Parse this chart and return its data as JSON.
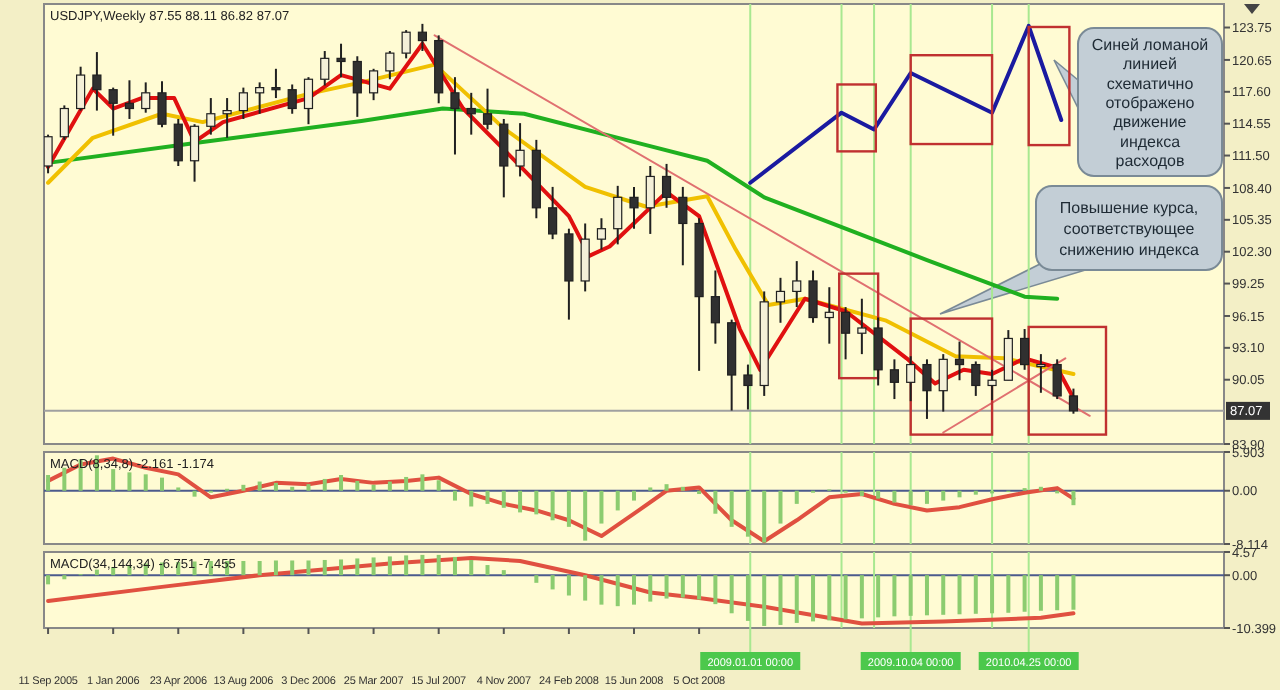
{
  "chart_data": [
    {
      "type": "candlestick",
      "title": "USDJPY,Weekly 87.55 88.11 86.82 87.07",
      "tick_labels": "y",
      "xlim": [
        "2005-09-04",
        "2011-03-27"
      ],
      "ylim": [
        83.9,
        126
      ],
      "yticks": [
        123.75,
        {
          "value": 120.65,
          "label": "120.65"
        },
        {
          "value": 117.6,
          "label": "117.60"
        },
        114.55,
        {
          "value": 111.5,
          "label": "111.50"
        },
        {
          "value": 108.4,
          "label": "108.40"
        },
        105.35,
        {
          "value": 102.3,
          "label": "102.30"
        },
        99.25,
        96.15,
        {
          "value": 93.1,
          "label": "93.10"
        },
        90.05,
        {
          "value": 83.9,
          "label": "83.90"
        }
      ],
      "x": [
        "2005-09-11",
        "2005-10-09",
        "2005-11-06",
        "2005-12-04",
        "2006-01-01",
        "2006-01-29",
        "2006-02-26",
        "2006-03-26",
        "2006-04-23",
        "2006-05-21",
        "2006-06-18",
        "2006-07-16",
        "2006-08-13",
        "2006-09-10",
        "2006-10-08",
        "2006-11-05",
        "2006-12-03",
        "2006-12-31",
        "2007-01-28",
        "2007-02-25",
        "2007-03-25",
        "2007-04-22",
        "2007-05-20",
        "2007-06-17",
        "2007-07-15",
        "2007-08-12",
        "2007-09-09",
        "2007-10-07",
        "2007-11-04",
        "2007-12-02",
        "2007-12-30",
        "2008-01-27",
        "2008-02-24",
        "2008-03-23",
        "2008-04-20",
        "2008-05-18",
        "2008-06-15",
        "2008-07-13",
        "2008-08-10",
        "2008-09-07",
        "2008-10-05",
        "2008-11-02",
        "2008-11-30",
        "2008-12-28",
        "2009-01-25",
        "2009-02-22",
        "2009-03-22",
        "2009-04-19",
        "2009-05-17",
        "2009-06-14",
        "2009-07-12",
        "2009-08-09",
        "2009-09-06",
        "2009-10-04",
        "2009-11-01",
        "2009-11-29",
        "2009-12-27",
        "2010-01-24",
        "2010-02-21",
        "2010-03-21",
        "2010-04-18",
        "2010-05-16",
        "2010-06-13",
        "2010-07-11"
      ],
      "ohlc": [
        [
          110.5,
          113.5,
          109.8,
          113.3
        ],
        [
          113.3,
          116.3,
          113.0,
          116.0
        ],
        [
          116.0,
          120.0,
          115.8,
          119.2
        ],
        [
          119.2,
          121.4,
          115.8,
          117.8
        ],
        [
          117.8,
          118.0,
          113.4,
          116.5
        ],
        [
          116.5,
          118.7,
          115.0,
          116.0
        ],
        [
          116.0,
          118.5,
          115.6,
          117.5
        ],
        [
          117.5,
          118.6,
          114.2,
          114.5
        ],
        [
          114.5,
          115.0,
          110.5,
          111.0
        ],
        [
          111.0,
          114.5,
          109.0,
          114.3
        ],
        [
          114.3,
          117.0,
          113.5,
          115.5
        ],
        [
          115.5,
          117.0,
          113.2,
          115.8
        ],
        [
          115.8,
          118.0,
          115.0,
          117.5
        ],
        [
          117.5,
          118.5,
          115.5,
          118.0
        ],
        [
          118.0,
          119.8,
          117.0,
          117.8
        ],
        [
          117.8,
          118.3,
          115.5,
          116.0
        ],
        [
          116.0,
          119.0,
          114.5,
          118.8
        ],
        [
          118.8,
          121.5,
          118.2,
          120.8
        ],
        [
          120.8,
          122.2,
          119.0,
          120.5
        ],
        [
          120.5,
          121.0,
          115.2,
          117.5
        ],
        [
          117.5,
          119.8,
          116.8,
          119.6
        ],
        [
          119.6,
          121.5,
          118.8,
          121.3
        ],
        [
          121.3,
          123.5,
          120.8,
          123.3
        ],
        [
          123.3,
          124.1,
          121.5,
          122.5
        ],
        [
          122.5,
          123.0,
          116.5,
          117.5
        ],
        [
          117.5,
          119.0,
          111.6,
          116.0
        ],
        [
          116.0,
          117.5,
          113.5,
          115.5
        ],
        [
          115.5,
          117.9,
          114.0,
          114.5
        ],
        [
          114.5,
          115.0,
          107.5,
          110.5
        ],
        [
          110.5,
          114.6,
          109.5,
          112.0
        ],
        [
          112.0,
          113.0,
          105.5,
          106.5
        ],
        [
          106.5,
          108.5,
          103.5,
          104.0
        ],
        [
          104.0,
          104.5,
          95.8,
          99.5
        ],
        [
          99.5,
          105.0,
          98.5,
          103.5
        ],
        [
          103.5,
          105.5,
          102.5,
          104.5
        ],
        [
          104.5,
          108.6,
          103.0,
          107.5
        ],
        [
          107.5,
          108.5,
          104.5,
          106.5
        ],
        [
          106.5,
          110.5,
          104.0,
          109.5
        ],
        [
          109.5,
          110.7,
          106.5,
          107.5
        ],
        [
          107.5,
          108.5,
          101.0,
          105.0
        ],
        [
          105.0,
          105.5,
          90.9,
          98.0
        ],
        [
          98.0,
          100.5,
          93.5,
          95.5
        ],
        [
          95.5,
          95.8,
          87.1,
          90.5
        ],
        [
          90.5,
          91.5,
          87.2,
          89.5
        ],
        [
          89.5,
          98.5,
          88.5,
          97.5
        ],
        [
          97.5,
          99.8,
          95.5,
          98.5
        ],
        [
          98.5,
          101.4,
          97.0,
          99.5
        ],
        [
          99.5,
          100.5,
          95.5,
          96.0
        ],
        [
          96.0,
          98.9,
          93.5,
          96.5
        ],
        [
          96.5,
          97.0,
          92.0,
          94.5
        ],
        [
          94.5,
          97.8,
          92.5,
          95.0
        ],
        [
          95.0,
          96.0,
          89.5,
          91.0
        ],
        [
          91.0,
          92.0,
          88.2,
          89.8
        ],
        [
          89.8,
          92.3,
          88.0,
          91.5
        ],
        [
          91.5,
          92.0,
          86.3,
          89.0
        ],
        [
          89.0,
          92.5,
          87.0,
          92.0
        ],
        [
          92.0,
          93.7,
          90.0,
          91.5
        ],
        [
          91.5,
          91.8,
          88.5,
          89.5
        ],
        [
          89.5,
          91.0,
          88.1,
          90.0
        ],
        [
          90.0,
          94.8,
          90.0,
          94.0
        ],
        [
          94.0,
          94.9,
          91.0,
          91.5
        ],
        [
          91.5,
          92.5,
          88.8,
          91.5
        ],
        [
          91.5,
          92.0,
          88.2,
          88.5
        ],
        [
          88.5,
          89.2,
          86.8,
          87.07
        ]
      ],
      "series": [
        {
          "type": "line",
          "color": "#20b020",
          "x": [
            "2005-09-11",
            "2006-06-04",
            "2007-03-04",
            "2007-07-22",
            "2007-12-09",
            "2008-07-06",
            "2008-10-19",
            "2009-01-25",
            "2009-06-14",
            "2009-11-01",
            "2010-04-18",
            "2010-06-13"
          ],
          "values": [
            110.8,
            112.8,
            114.8,
            116.0,
            115.5,
            112.5,
            111.0,
            107.5,
            104.5,
            101.5,
            98.0,
            97.8
          ]
        },
        {
          "type": "line",
          "color": "#f0c000",
          "x": [
            "2005-09-11",
            "2005-11-27",
            "2006-03-26",
            "2006-06-04",
            "2006-12-03",
            "2007-03-04",
            "2007-07-08",
            "2007-11-04",
            "2008-03-23",
            "2008-07-06",
            "2008-10-19",
            "2008-12-07",
            "2009-02-01",
            "2009-04-05",
            "2009-08-23",
            "2009-12-20",
            "2010-03-14",
            "2010-07-11"
          ],
          "values": [
            108.9,
            113.2,
            115.5,
            114.7,
            117.4,
            118.5,
            120.2,
            114.1,
            108.5,
            106.6,
            107.6,
            102.5,
            97.2,
            97.8,
            95.7,
            92.3,
            92.1,
            90.6
          ]
        },
        {
          "type": "line",
          "color": "#e01010",
          "x": [
            "2005-09-11",
            "2005-11-27",
            "2006-01-01",
            "2006-02-19",
            "2006-04-16",
            "2006-05-21",
            "2006-07-09",
            "2006-12-03",
            "2007-01-28",
            "2007-04-22",
            "2007-06-17",
            "2007-08-26",
            "2007-11-25",
            "2008-02-24",
            "2008-03-30",
            "2008-05-04",
            "2008-08-10",
            "2008-10-05",
            "2008-12-14",
            "2009-01-18",
            "2009-04-05",
            "2009-06-14",
            "2009-09-27",
            "2009-11-15",
            "2010-01-03",
            "2010-02-21",
            "2010-04-18",
            "2010-06-13",
            "2010-07-11"
          ],
          "values": [
            110.4,
            117.9,
            116.0,
            117.0,
            117.0,
            112.8,
            114.7,
            117.0,
            119.2,
            117.9,
            122.2,
            116.0,
            110.9,
            105.7,
            101.9,
            102.8,
            108.0,
            105.7,
            94.9,
            91.0,
            97.8,
            96.6,
            92.1,
            89.7,
            91.0,
            90.6,
            92.1,
            91.2,
            88.3
          ]
        },
        {
          "type": "line",
          "color": "#e07070",
          "x": [
            "2007-07-08",
            "2010-08-08"
          ],
          "values": [
            123.0,
            86.6
          ]
        },
        {
          "type": "line",
          "color": "#e07070",
          "x": [
            "2009-11-29",
            "2010-06-27"
          ],
          "values": [
            85.0,
            92.1
          ]
        },
        {
          "type": "line",
          "color": "#1a1aa0",
          "x": [
            "2009-01-01",
            "2009-06-07",
            "2009-08-02",
            "2009-10-04",
            "2010-02-21",
            "2010-04-25",
            "2010-06-20"
          ],
          "values": [
            108.9,
            115.6,
            114.0,
            119.4,
            115.6,
            123.9,
            114.9
          ]
        }
      ],
      "ref_lines": [
        {
          "axis": "x",
          "value": "2009-01-01",
          "color": "#a8e890"
        },
        {
          "axis": "x",
          "value": "2009-06-07",
          "color": "#a8e890"
        },
        {
          "axis": "x",
          "value": "2009-08-02",
          "color": "#a8e890"
        },
        {
          "axis": "x",
          "value": "2009-10-04",
          "color": "#a8e890"
        },
        {
          "axis": "x",
          "value": "2010-02-21",
          "color": "#a8e890"
        },
        {
          "axis": "x",
          "value": "2010-04-25",
          "color": "#a8e890"
        },
        {
          "axis": "y",
          "value": 87.07,
          "label": "87.07",
          "color": "#a0a0a0"
        }
      ],
      "annotations": [
        "Синей ломаной линией схематично отображено движение индекса расходов",
        "Повышение курса, соответствующее снижению индекса"
      ]
    },
    {
      "type": "bar",
      "title": "MACD(8,34,8) -2.161 -1.174",
      "tick_labels": "y",
      "xlim": [
        "2005-09-04",
        "2011-03-27"
      ],
      "ylim": [
        -8.114,
        5.903
      ],
      "yticks": [
        {
          "value": 5.903,
          "label": "5.903"
        },
        {
          "value": 0,
          "label": "0.00"
        },
        {
          "value": -8.114,
          "label": "-8.114"
        }
      ],
      "x": [
        "2005-09-11",
        "2005-10-09",
        "2005-11-06",
        "2005-12-04",
        "2006-01-01",
        "2006-01-29",
        "2006-02-26",
        "2006-03-26",
        "2006-04-23",
        "2006-05-21",
        "2006-06-18",
        "2006-07-16",
        "2006-08-13",
        "2006-09-10",
        "2006-10-08",
        "2006-11-05",
        "2006-12-03",
        "2006-12-31",
        "2007-01-28",
        "2007-02-25",
        "2007-03-25",
        "2007-04-22",
        "2007-05-20",
        "2007-06-17",
        "2007-07-15",
        "2007-08-12",
        "2007-09-09",
        "2007-10-07",
        "2007-11-04",
        "2007-12-02",
        "2007-12-30",
        "2008-01-27",
        "2008-02-24",
        "2008-03-23",
        "2008-04-20",
        "2008-05-18",
        "2008-06-15",
        "2008-07-13",
        "2008-08-10",
        "2008-09-07",
        "2008-10-05",
        "2008-11-02",
        "2008-11-30",
        "2008-12-28",
        "2009-01-25",
        "2009-02-22",
        "2009-03-22",
        "2009-04-19",
        "2009-05-17",
        "2009-06-14",
        "2009-07-12",
        "2009-08-09",
        "2009-09-06",
        "2009-10-04",
        "2009-11-01",
        "2009-11-29",
        "2009-12-27",
        "2010-01-24",
        "2010-02-21",
        "2010-03-21",
        "2010-04-18",
        "2010-05-16",
        "2010-06-13",
        "2010-07-11"
      ],
      "series": [
        {
          "type": "bar",
          "color": "#8ccc70",
          "values": [
            2.4,
            3.5,
            4.8,
            5.4,
            3.3,
            2.8,
            2.5,
            2.0,
            0.5,
            -0.9,
            -0.3,
            0.3,
            0.9,
            1.4,
            1.2,
            0.6,
            1.0,
            1.8,
            2.4,
            1.5,
            0.9,
            1.4,
            2.1,
            2.5,
            1.6,
            -1.5,
            -2.4,
            -2.0,
            -2.6,
            -3.3,
            -3.6,
            -4.5,
            -5.5,
            -7.6,
            -5.0,
            -3.0,
            -1.5,
            0.5,
            1.0,
            0.6,
            -0.5,
            -3.5,
            -5.5,
            -7.0,
            -7.9,
            -5.0,
            -2.0,
            -0.3,
            0.2,
            -0.3,
            -0.8,
            -1.2,
            -1.8,
            -2.2,
            -2.0,
            -1.5,
            -1.0,
            -0.6,
            -0.4,
            -0.2,
            0.4,
            0.6,
            -0.4,
            -2.2
          ]
        },
        {
          "type": "line",
          "color": "#e05040",
          "x": [
            "2005-09-11",
            "2005-11-06",
            "2006-01-01",
            "2006-02-26",
            "2006-04-23",
            "2006-06-18",
            "2006-08-13",
            "2006-10-08",
            "2006-12-03",
            "2007-01-28",
            "2007-03-25",
            "2007-05-20",
            "2007-07-15",
            "2007-09-09",
            "2007-11-04",
            "2007-12-30",
            "2008-02-24",
            "2008-04-20",
            "2008-06-15",
            "2008-08-10",
            "2008-10-05",
            "2008-11-30",
            "2009-01-25",
            "2009-03-22",
            "2009-05-17",
            "2009-07-12",
            "2009-09-06",
            "2009-11-01",
            "2009-12-27",
            "2010-02-21",
            "2010-04-18",
            "2010-06-13",
            "2010-07-11"
          ],
          "values": [
            1.5,
            4.0,
            4.9,
            3.5,
            2.5,
            -1.0,
            0.0,
            1.2,
            1.0,
            1.8,
            1.2,
            1.5,
            2.0,
            -0.5,
            -2.0,
            -3.0,
            -4.5,
            -6.9,
            -3.5,
            0.0,
            0.5,
            -4.5,
            -7.7,
            -4.5,
            -1.0,
            -0.5,
            -2.0,
            -3.0,
            -2.5,
            -1.3,
            -0.3,
            0.4,
            -1.2
          ]
        }
      ],
      "ref_lines": [
        {
          "axis": "y",
          "value": 0,
          "color": "#4b5a8c"
        },
        {
          "axis": "x",
          "value": "2009-01-01",
          "color": "#a8e890"
        },
        {
          "axis": "x",
          "value": "2009-06-07",
          "color": "#a8e890"
        },
        {
          "axis": "x",
          "value": "2009-08-02",
          "color": "#a8e890"
        },
        {
          "axis": "x",
          "value": "2009-10-04",
          "color": "#a8e890"
        },
        {
          "axis": "x",
          "value": "2010-02-21",
          "color": "#a8e890"
        },
        {
          "axis": "x",
          "value": "2010-04-25",
          "color": "#a8e890"
        }
      ]
    },
    {
      "type": "bar",
      "title": "MACD(34,144,34) -6.751 -7.455",
      "xlim": [
        "2005-09-04",
        "2011-03-27"
      ],
      "ylim": [
        -10.399,
        4.57
      ],
      "yticks": [
        4.57,
        {
          "value": 0,
          "label": "0.00"
        },
        -10.399
      ],
      "xticks": [
        {
          "value": "2005-09-11",
          "label": "11 Sep 2005"
        },
        {
          "value": "2006-01-01",
          "label": "1 Jan 2006"
        },
        {
          "value": "2006-04-23",
          "label": "23 Apr 2006"
        },
        {
          "value": "2006-08-13",
          "label": "13 Aug 2006"
        },
        {
          "value": "2006-12-03",
          "label": "3 Dec 2006"
        },
        {
          "value": "2007-03-25",
          "label": "25 Mar 2007"
        },
        {
          "value": "2007-07-15",
          "label": "15 Jul 2007"
        },
        {
          "value": "2007-11-04",
          "label": "4 Nov 2007"
        },
        {
          "value": "2008-02-24",
          "label": "24 Feb 2008"
        },
        {
          "value": "2008-06-15",
          "label": "15 Jun 2008"
        },
        {
          "value": "2008-10-05",
          "label": "5 Oct 2008"
        }
      ],
      "x": [
        "2005-09-11",
        "2005-10-09",
        "2005-11-06",
        "2005-12-04",
        "2006-01-01",
        "2006-01-29",
        "2006-02-26",
        "2006-03-26",
        "2006-04-23",
        "2006-05-21",
        "2006-06-18",
        "2006-07-16",
        "2006-08-13",
        "2006-09-10",
        "2006-10-08",
        "2006-11-05",
        "2006-12-03",
        "2006-12-31",
        "2007-01-28",
        "2007-02-25",
        "2007-03-25",
        "2007-04-22",
        "2007-05-20",
        "2007-06-17",
        "2007-07-15",
        "2007-08-12",
        "2007-09-09",
        "2007-10-07",
        "2007-11-04",
        "2007-12-02",
        "2007-12-30",
        "2008-01-27",
        "2008-02-24",
        "2008-03-23",
        "2008-04-20",
        "2008-05-18",
        "2008-06-15",
        "2008-07-13",
        "2008-08-10",
        "2008-09-07",
        "2008-10-05",
        "2008-11-02",
        "2008-11-30",
        "2008-12-28",
        "2009-01-25",
        "2009-02-22",
        "2009-03-22",
        "2009-04-19",
        "2009-05-17",
        "2009-06-14",
        "2009-07-12",
        "2009-08-09",
        "2009-09-06",
        "2009-10-04",
        "2009-11-01",
        "2009-11-29",
        "2009-12-27",
        "2010-01-24",
        "2010-02-21",
        "2010-03-21",
        "2010-04-18",
        "2010-05-16",
        "2010-06-13",
        "2010-07-11"
      ],
      "series": [
        {
          "type": "bar",
          "color": "#8ccc70",
          "values": [
            -1.8,
            -0.8,
            0.2,
            1.1,
            1.6,
            2.0,
            2.3,
            2.5,
            2.6,
            2.7,
            2.8,
            2.8,
            2.8,
            2.8,
            2.9,
            2.9,
            2.9,
            3.0,
            3.1,
            3.3,
            3.5,
            3.7,
            3.9,
            4.0,
            4.0,
            3.6,
            3.0,
            2.0,
            1.0,
            0.0,
            -1.5,
            -2.8,
            -4.0,
            -5.0,
            -5.8,
            -6.1,
            -5.8,
            -5.2,
            -4.6,
            -4.4,
            -4.8,
            -5.7,
            -7.5,
            -9.0,
            -10.0,
            -9.8,
            -9.4,
            -9.1,
            -8.9,
            -8.7,
            -8.5,
            -8.3,
            -8.1,
            -8.0,
            -7.9,
            -7.8,
            -7.7,
            -7.6,
            -7.5,
            -7.4,
            -7.2,
            -7.0,
            -6.9,
            -6.8
          ]
        },
        {
          "type": "line",
          "color": "#e05040",
          "x": [
            "2005-09-11",
            "2006-03-26",
            "2006-09-10",
            "2007-04-22",
            "2007-09-09",
            "2007-12-02",
            "2008-03-23",
            "2008-07-13",
            "2008-10-05",
            "2009-01-25",
            "2009-07-12",
            "2009-11-29",
            "2010-05-16",
            "2010-07-11"
          ],
          "values": [
            -5.1,
            -2.3,
            0.0,
            2.3,
            3.4,
            2.8,
            0.0,
            -3.4,
            -4.5,
            -6.2,
            -9.5,
            -9.1,
            -8.4,
            -7.5
          ]
        }
      ],
      "ref_lines": [
        {
          "axis": "y",
          "value": 0,
          "color": "#4b5a8c"
        },
        {
          "axis": "x",
          "value": "2009-01-01",
          "label": "2009.01.01 00:00",
          "color": "#a8e890"
        },
        {
          "axis": "x",
          "value": "2009-06-07",
          "color": "#a8e890"
        },
        {
          "axis": "x",
          "value": "2009-08-02",
          "color": "#a8e890"
        },
        {
          "axis": "x",
          "value": "2009-10-04",
          "label": "2009.10.04 00:00",
          "color": "#a8e890"
        },
        {
          "axis": "x",
          "value": "2010-02-21",
          "color": "#a8e890"
        },
        {
          "axis": "x",
          "value": "2010-04-25",
          "label": "2010.04.25 00:00",
          "color": "#a8e890"
        }
      ]
    }
  ]
}
